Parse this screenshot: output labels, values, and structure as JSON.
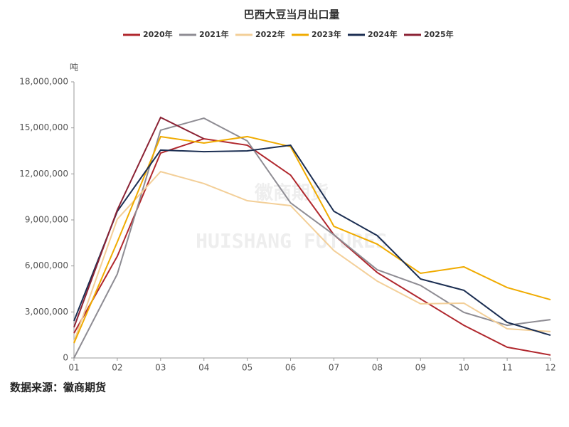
{
  "chart_data": {
    "type": "line",
    "title": "巴西大豆当月出口量",
    "y_unit": "吨",
    "source": "数据来源：徽商期货",
    "watermark": [
      "徽商期货",
      "HUISHANG FUTURES"
    ],
    "categories": [
      "01",
      "02",
      "03",
      "04",
      "05",
      "06",
      "07",
      "08",
      "09",
      "10",
      "11",
      "12"
    ],
    "ylim": [
      0,
      18000000
    ],
    "yticks": [
      0,
      {
        "value": 3000000,
        "label": "3,000,000"
      },
      {
        "value": 6000000,
        "label": "6,000,000"
      },
      {
        "value": 9000000,
        "label": "9,000,000"
      },
      {
        "value": 12000000,
        "label": "12,000,000"
      },
      {
        "value": 15000000,
        "label": "15,000,000"
      },
      {
        "value": 18000000,
        "label": "18,000,000"
      }
    ],
    "legend": "top",
    "series": [
      {
        "name": "2020年",
        "color": "#b0272d",
        "values": [
          1620000,
          6630000,
          13360000,
          14290000,
          13870000,
          11920000,
          8030000,
          5570000,
          3850000,
          2130000,
          700000,
          190000
        ]
      },
      {
        "name": "2021年",
        "color": "#8e8c93",
        "values": [
          0,
          5470000,
          14850000,
          15630000,
          14150000,
          10110000,
          8030000,
          5750000,
          4730000,
          2970000,
          2130000,
          2500000
        ]
      },
      {
        "name": "2022年",
        "color": "#f3cf98",
        "values": [
          1070000,
          9050000,
          12150000,
          11370000,
          10250000,
          9930000,
          7000000,
          5010000,
          3530000,
          3570000,
          1900000,
          1720000
        ]
      },
      {
        "name": "2023年",
        "color": "#f0ab00",
        "values": [
          970000,
          7560000,
          14430000,
          14010000,
          14430000,
          13780000,
          8580000,
          7420000,
          5520000,
          5940000,
          4590000,
          3800000
        ]
      },
      {
        "name": "2024年",
        "color": "#1b2e52",
        "values": [
          2410000,
          9560000,
          13550000,
          13450000,
          13500000,
          13870000,
          9560000,
          7980000,
          5150000,
          4410000,
          2320000,
          1480000
        ]
      },
      {
        "name": "2025年",
        "color": "#8b2234",
        "values": [
          2000000,
          9650000,
          15680000,
          14290000,
          null,
          null,
          null,
          null,
          null,
          null,
          null,
          null
        ]
      }
    ]
  }
}
